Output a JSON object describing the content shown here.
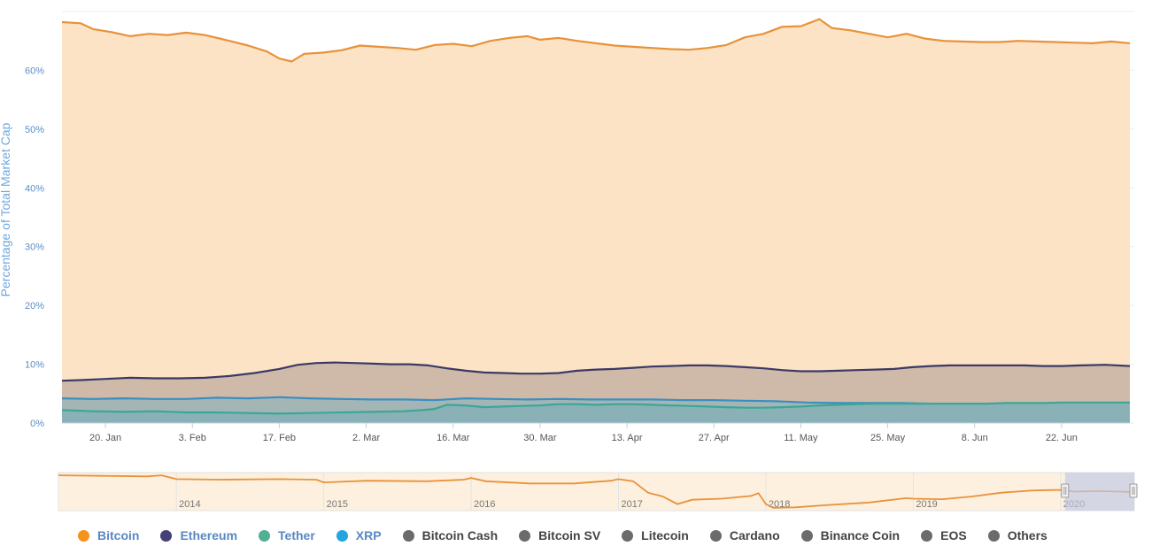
{
  "chart_data": {
    "type": "area",
    "title": "",
    "ylabel": "Percentage of Total Market Cap",
    "xlabel": "",
    "ylim": [
      0,
      70
    ],
    "y_ticks": [
      "0%",
      "10%",
      "20%",
      "30%",
      "40%",
      "50%",
      "60%"
    ],
    "y_tick_values": [
      0,
      10,
      20,
      30,
      40,
      50,
      60
    ],
    "x_ticks": [
      "20. Jan",
      "3. Feb",
      "17. Feb",
      "2. Mar",
      "16. Mar",
      "30. Mar",
      "13. Apr",
      "27. Apr",
      "11. May",
      "25. May",
      "8. Jun",
      "22. Jun"
    ],
    "x_tick_days": [
      20,
      34,
      48,
      62,
      76,
      90,
      104,
      118,
      132,
      146,
      160,
      174
    ],
    "x_range_days": [
      13,
      185
    ],
    "grid": true,
    "legend_position": "bottom",
    "series": [
      {
        "name": "Bitcoin",
        "color": "#f7931a",
        "area_color": "#fce3c6",
        "stroke": "#e8923a",
        "points": [
          [
            13,
            68.2
          ],
          [
            16,
            68.0
          ],
          [
            18,
            67.0
          ],
          [
            21,
            66.5
          ],
          [
            24,
            65.8
          ],
          [
            27,
            66.2
          ],
          [
            30,
            66.0
          ],
          [
            33,
            66.4
          ],
          [
            36,
            66.0
          ],
          [
            40,
            65.0
          ],
          [
            43,
            64.2
          ],
          [
            46,
            63.2
          ],
          [
            48,
            62.0
          ],
          [
            50,
            61.5
          ],
          [
            52,
            62.8
          ],
          [
            55,
            63.0
          ],
          [
            58,
            63.4
          ],
          [
            61,
            64.2
          ],
          [
            64,
            64.0
          ],
          [
            67,
            63.8
          ],
          [
            70,
            63.5
          ],
          [
            73,
            64.3
          ],
          [
            76,
            64.5
          ],
          [
            79,
            64.1
          ],
          [
            82,
            65.0
          ],
          [
            85,
            65.5
          ],
          [
            88,
            65.8
          ],
          [
            90,
            65.2
          ],
          [
            93,
            65.5
          ],
          [
            96,
            65.0
          ],
          [
            99,
            64.6
          ],
          [
            102,
            64.2
          ],
          [
            105,
            64.0
          ],
          [
            108,
            63.8
          ],
          [
            111,
            63.6
          ],
          [
            114,
            63.5
          ],
          [
            117,
            63.8
          ],
          [
            120,
            64.3
          ],
          [
            123,
            65.6
          ],
          [
            126,
            66.2
          ],
          [
            129,
            67.4
          ],
          [
            132,
            67.5
          ],
          [
            135,
            68.7
          ],
          [
            137,
            67.2
          ],
          [
            140,
            66.8
          ],
          [
            143,
            66.2
          ],
          [
            146,
            65.6
          ],
          [
            149,
            66.2
          ],
          [
            152,
            65.4
          ],
          [
            155,
            65.0
          ],
          [
            158,
            64.9
          ],
          [
            161,
            64.8
          ],
          [
            164,
            64.8
          ],
          [
            167,
            65.0
          ],
          [
            170,
            64.9
          ],
          [
            173,
            64.8
          ],
          [
            176,
            64.7
          ],
          [
            179,
            64.6
          ],
          [
            182,
            64.9
          ],
          [
            185,
            64.6
          ]
        ]
      },
      {
        "name": "Ethereum",
        "color": "#434175",
        "area_color": "#cfbaaa",
        "stroke": "#3b3a66",
        "points": [
          [
            13,
            7.2
          ],
          [
            16,
            7.3
          ],
          [
            20,
            7.5
          ],
          [
            24,
            7.7
          ],
          [
            28,
            7.6
          ],
          [
            32,
            7.6
          ],
          [
            36,
            7.7
          ],
          [
            40,
            8.0
          ],
          [
            44,
            8.5
          ],
          [
            48,
            9.2
          ],
          [
            51,
            9.9
          ],
          [
            54,
            10.2
          ],
          [
            57,
            10.3
          ],
          [
            60,
            10.2
          ],
          [
            63,
            10.1
          ],
          [
            66,
            10.0
          ],
          [
            69,
            10.0
          ],
          [
            72,
            9.8
          ],
          [
            75,
            9.3
          ],
          [
            78,
            8.9
          ],
          [
            81,
            8.6
          ],
          [
            84,
            8.5
          ],
          [
            87,
            8.4
          ],
          [
            90,
            8.4
          ],
          [
            93,
            8.5
          ],
          [
            96,
            8.9
          ],
          [
            99,
            9.1
          ],
          [
            102,
            9.2
          ],
          [
            105,
            9.4
          ],
          [
            108,
            9.6
          ],
          [
            111,
            9.7
          ],
          [
            114,
            9.8
          ],
          [
            117,
            9.8
          ],
          [
            120,
            9.7
          ],
          [
            123,
            9.5
          ],
          [
            126,
            9.3
          ],
          [
            129,
            9.0
          ],
          [
            132,
            8.8
          ],
          [
            135,
            8.8
          ],
          [
            138,
            8.9
          ],
          [
            141,
            9.0
          ],
          [
            144,
            9.1
          ],
          [
            147,
            9.2
          ],
          [
            150,
            9.5
          ],
          [
            153,
            9.7
          ],
          [
            156,
            9.8
          ],
          [
            159,
            9.8
          ],
          [
            162,
            9.8
          ],
          [
            165,
            9.8
          ],
          [
            168,
            9.8
          ],
          [
            171,
            9.7
          ],
          [
            174,
            9.7
          ],
          [
            177,
            9.8
          ],
          [
            181,
            9.9
          ],
          [
            185,
            9.7
          ]
        ]
      },
      {
        "name": "XRP",
        "color": "#23a6dc",
        "area_color": "#a4b5b5",
        "stroke": "#3b8fbf",
        "points": [
          [
            13,
            4.2
          ],
          [
            18,
            4.1
          ],
          [
            23,
            4.2
          ],
          [
            28,
            4.1
          ],
          [
            33,
            4.1
          ],
          [
            38,
            4.3
          ],
          [
            43,
            4.2
          ],
          [
            48,
            4.4
          ],
          [
            53,
            4.2
          ],
          [
            58,
            4.1
          ],
          [
            63,
            4.0
          ],
          [
            68,
            4.0
          ],
          [
            73,
            3.9
          ],
          [
            78,
            4.2
          ],
          [
            83,
            4.1
          ],
          [
            88,
            4.0
          ],
          [
            93,
            4.1
          ],
          [
            98,
            4.0
          ],
          [
            103,
            4.0
          ],
          [
            108,
            4.0
          ],
          [
            113,
            3.9
          ],
          [
            118,
            3.9
          ],
          [
            123,
            3.8
          ],
          [
            128,
            3.7
          ],
          [
            133,
            3.5
          ],
          [
            138,
            3.4
          ],
          [
            143,
            3.4
          ],
          [
            148,
            3.4
          ],
          [
            153,
            3.3
          ],
          [
            158,
            3.2
          ],
          [
            163,
            3.2
          ],
          [
            168,
            3.2
          ],
          [
            173,
            3.1
          ],
          [
            178,
            3.1
          ],
          [
            185,
            3.0
          ]
        ]
      },
      {
        "name": "Tether",
        "color": "#53af94",
        "area_color": "#89b1b6",
        "stroke": "#3ba796",
        "points": [
          [
            13,
            2.2
          ],
          [
            18,
            2.0
          ],
          [
            23,
            1.9
          ],
          [
            28,
            2.0
          ],
          [
            33,
            1.8
          ],
          [
            38,
            1.8
          ],
          [
            43,
            1.7
          ],
          [
            48,
            1.6
          ],
          [
            53,
            1.7
          ],
          [
            58,
            1.8
          ],
          [
            63,
            1.9
          ],
          [
            68,
            2.0
          ],
          [
            71,
            2.2
          ],
          [
            73,
            2.4
          ],
          [
            75,
            3.1
          ],
          [
            78,
            3.0
          ],
          [
            81,
            2.7
          ],
          [
            84,
            2.8
          ],
          [
            87,
            2.9
          ],
          [
            90,
            3.0
          ],
          [
            93,
            3.2
          ],
          [
            96,
            3.2
          ],
          [
            99,
            3.1
          ],
          [
            102,
            3.2
          ],
          [
            105,
            3.2
          ],
          [
            108,
            3.1
          ],
          [
            111,
            3.0
          ],
          [
            114,
            2.9
          ],
          [
            117,
            2.8
          ],
          [
            120,
            2.7
          ],
          [
            123,
            2.6
          ],
          [
            126,
            2.6
          ],
          [
            129,
            2.7
          ],
          [
            132,
            2.8
          ],
          [
            135,
            3.0
          ],
          [
            138,
            3.1
          ],
          [
            141,
            3.2
          ],
          [
            144,
            3.3
          ],
          [
            147,
            3.3
          ],
          [
            150,
            3.3
          ],
          [
            153,
            3.3
          ],
          [
            156,
            3.3
          ],
          [
            159,
            3.3
          ],
          [
            162,
            3.3
          ],
          [
            165,
            3.4
          ],
          [
            168,
            3.4
          ],
          [
            171,
            3.4
          ],
          [
            174,
            3.5
          ],
          [
            177,
            3.5
          ],
          [
            181,
            3.5
          ],
          [
            185,
            3.5
          ]
        ]
      }
    ],
    "navigator": {
      "x_labels": [
        "2014",
        "2015",
        "2016",
        "2017",
        "2018",
        "2019",
        "2020"
      ],
      "x_label_years": [
        2014,
        2015,
        2016,
        2017,
        2018,
        2019,
        2020
      ],
      "x_range_years": [
        2013.2,
        2020.5
      ],
      "selected_range_years": [
        2020.03,
        2020.5
      ],
      "series_name": "Bitcoin",
      "ylim": [
        30,
        100
      ],
      "points": [
        [
          2013.2,
          95
        ],
        [
          2013.5,
          94
        ],
        [
          2013.8,
          93
        ],
        [
          2013.9,
          95
        ],
        [
          2014.0,
          88
        ],
        [
          2014.3,
          87
        ],
        [
          2014.7,
          88
        ],
        [
          2014.95,
          87
        ],
        [
          2015.0,
          82
        ],
        [
          2015.3,
          85
        ],
        [
          2015.7,
          84
        ],
        [
          2015.95,
          87
        ],
        [
          2016.0,
          90
        ],
        [
          2016.1,
          84
        ],
        [
          2016.4,
          80
        ],
        [
          2016.7,
          80
        ],
        [
          2016.95,
          85
        ],
        [
          2017.0,
          88
        ],
        [
          2017.1,
          84
        ],
        [
          2017.2,
          63
        ],
        [
          2017.3,
          56
        ],
        [
          2017.4,
          42
        ],
        [
          2017.5,
          50
        ],
        [
          2017.7,
          52
        ],
        [
          2017.9,
          57
        ],
        [
          2017.95,
          62
        ],
        [
          2018.0,
          42
        ],
        [
          2018.05,
          35
        ],
        [
          2018.2,
          36
        ],
        [
          2018.4,
          40
        ],
        [
          2018.7,
          45
        ],
        [
          2018.95,
          53
        ],
        [
          2019.0,
          52
        ],
        [
          2019.2,
          51
        ],
        [
          2019.4,
          56
        ],
        [
          2019.6,
          63
        ],
        [
          2019.8,
          67
        ],
        [
          2019.95,
          68
        ],
        [
          2020.0,
          68
        ],
        [
          2020.1,
          65
        ],
        [
          2020.25,
          66
        ],
        [
          2020.4,
          65
        ],
        [
          2020.5,
          64
        ]
      ]
    }
  },
  "legend": [
    {
      "label": "Bitcoin",
      "color": "#f7931a",
      "active": true
    },
    {
      "label": "Ethereum",
      "color": "#434175",
      "active": true
    },
    {
      "label": "Tether",
      "color": "#53af94",
      "active": true
    },
    {
      "label": "XRP",
      "color": "#23a6dc",
      "active": true
    },
    {
      "label": "Bitcoin Cash",
      "color": "#6b6b6b",
      "active": false
    },
    {
      "label": "Bitcoin SV",
      "color": "#6b6b6b",
      "active": false
    },
    {
      "label": "Litecoin",
      "color": "#6b6b6b",
      "active": false
    },
    {
      "label": "Cardano",
      "color": "#6b6b6b",
      "active": false
    },
    {
      "label": "Binance Coin",
      "color": "#6b6b6b",
      "active": false
    },
    {
      "label": "EOS",
      "color": "#6b6b6b",
      "active": false
    },
    {
      "label": "Others",
      "color": "#6b6b6b",
      "active": false
    }
  ],
  "colors": {
    "axis_label": "#6fa8dc",
    "tick_label": "#5b8fc7",
    "legend_active_text": "#5a87c2",
    "legend_inactive_text": "#444444",
    "grid": "#eeeeee",
    "navigator_fill": "#fdf0df",
    "navigator_mask": "#c0c8e6"
  }
}
